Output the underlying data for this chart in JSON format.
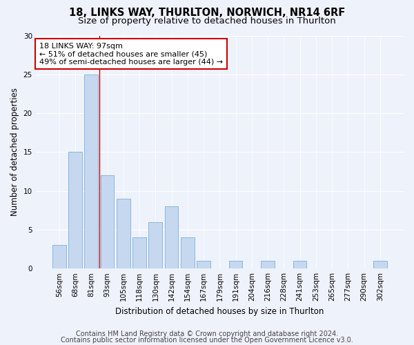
{
  "title1": "18, LINKS WAY, THURLTON, NORWICH, NR14 6RF",
  "title2": "Size of property relative to detached houses in Thurlton",
  "xlabel": "Distribution of detached houses by size in Thurlton",
  "ylabel": "Number of detached properties",
  "categories": [
    "56sqm",
    "68sqm",
    "81sqm",
    "93sqm",
    "105sqm",
    "118sqm",
    "130sqm",
    "142sqm",
    "154sqm",
    "167sqm",
    "179sqm",
    "191sqm",
    "204sqm",
    "216sqm",
    "228sqm",
    "241sqm",
    "253sqm",
    "265sqm",
    "277sqm",
    "290sqm",
    "302sqm"
  ],
  "values": [
    3,
    15,
    25,
    12,
    9,
    4,
    6,
    8,
    4,
    1,
    0,
    1,
    0,
    1,
    0,
    1,
    0,
    0,
    0,
    0,
    1
  ],
  "bar_color": "#c5d8f0",
  "bar_edge_color": "#7bafd4",
  "vline_x": 2.5,
  "annotation_line1": "18 LINKS WAY: 97sqm",
  "annotation_line2": "← 51% of detached houses are smaller (45)",
  "annotation_line3": "49% of semi-detached houses are larger (44) →",
  "annotation_box_color": "white",
  "annotation_box_edge": "#cc0000",
  "vline_color": "#cc0000",
  "ylim": [
    0,
    30
  ],
  "yticks": [
    0,
    5,
    10,
    15,
    20,
    25,
    30
  ],
  "bg_color": "#eef2fb",
  "grid_color": "white",
  "footer1": "Contains HM Land Registry data © Crown copyright and database right 2024.",
  "footer2": "Contains public sector information licensed under the Open Government Licence v3.0.",
  "title1_fontsize": 10.5,
  "title2_fontsize": 9.5,
  "xlabel_fontsize": 8.5,
  "ylabel_fontsize": 8.5,
  "tick_fontsize": 7.5,
  "footer_fontsize": 7.0,
  "annot_fontsize": 8.0
}
